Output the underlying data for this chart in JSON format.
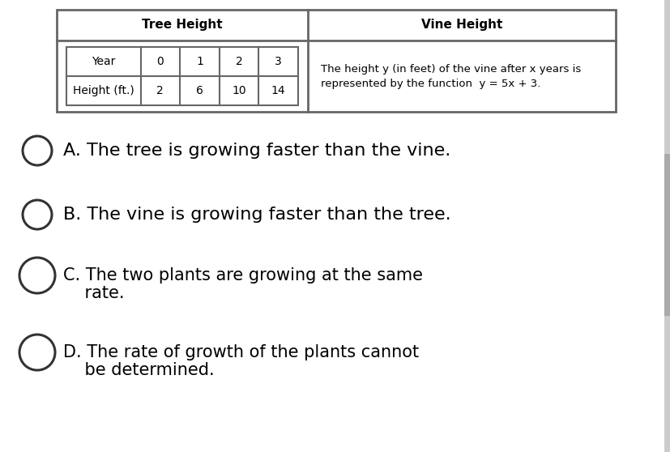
{
  "bg_color": "#e8e8e8",
  "content_bg": "#ffffff",
  "table_title_left": "Tree Height",
  "table_title_right": "Vine Height",
  "table_years": [
    "Year",
    "0",
    "1",
    "2",
    "3"
  ],
  "table_heights": [
    "Height (ft.)",
    "2",
    "6",
    "10",
    "14"
  ],
  "vine_text_line1": "The height y (in feet) of the vine after x years is",
  "vine_text_line2": "represented by the function  y = 5x + 3.",
  "option_A": "A. The tree is growing faster than the vine.",
  "option_B": "B. The vine is growing faster than the tree.",
  "option_C1": "C. The two plants are growing at the same",
  "option_C2": "    rate.",
  "option_D1": "D. The rate of growth of the plants cannot",
  "option_D2": "    be determined.",
  "font_size_table_data": 10,
  "font_size_table_title": 11,
  "font_size_options_AB": 16,
  "font_size_options_CD": 15,
  "table_border_color": "#666666",
  "option_circle_color": "#333333"
}
